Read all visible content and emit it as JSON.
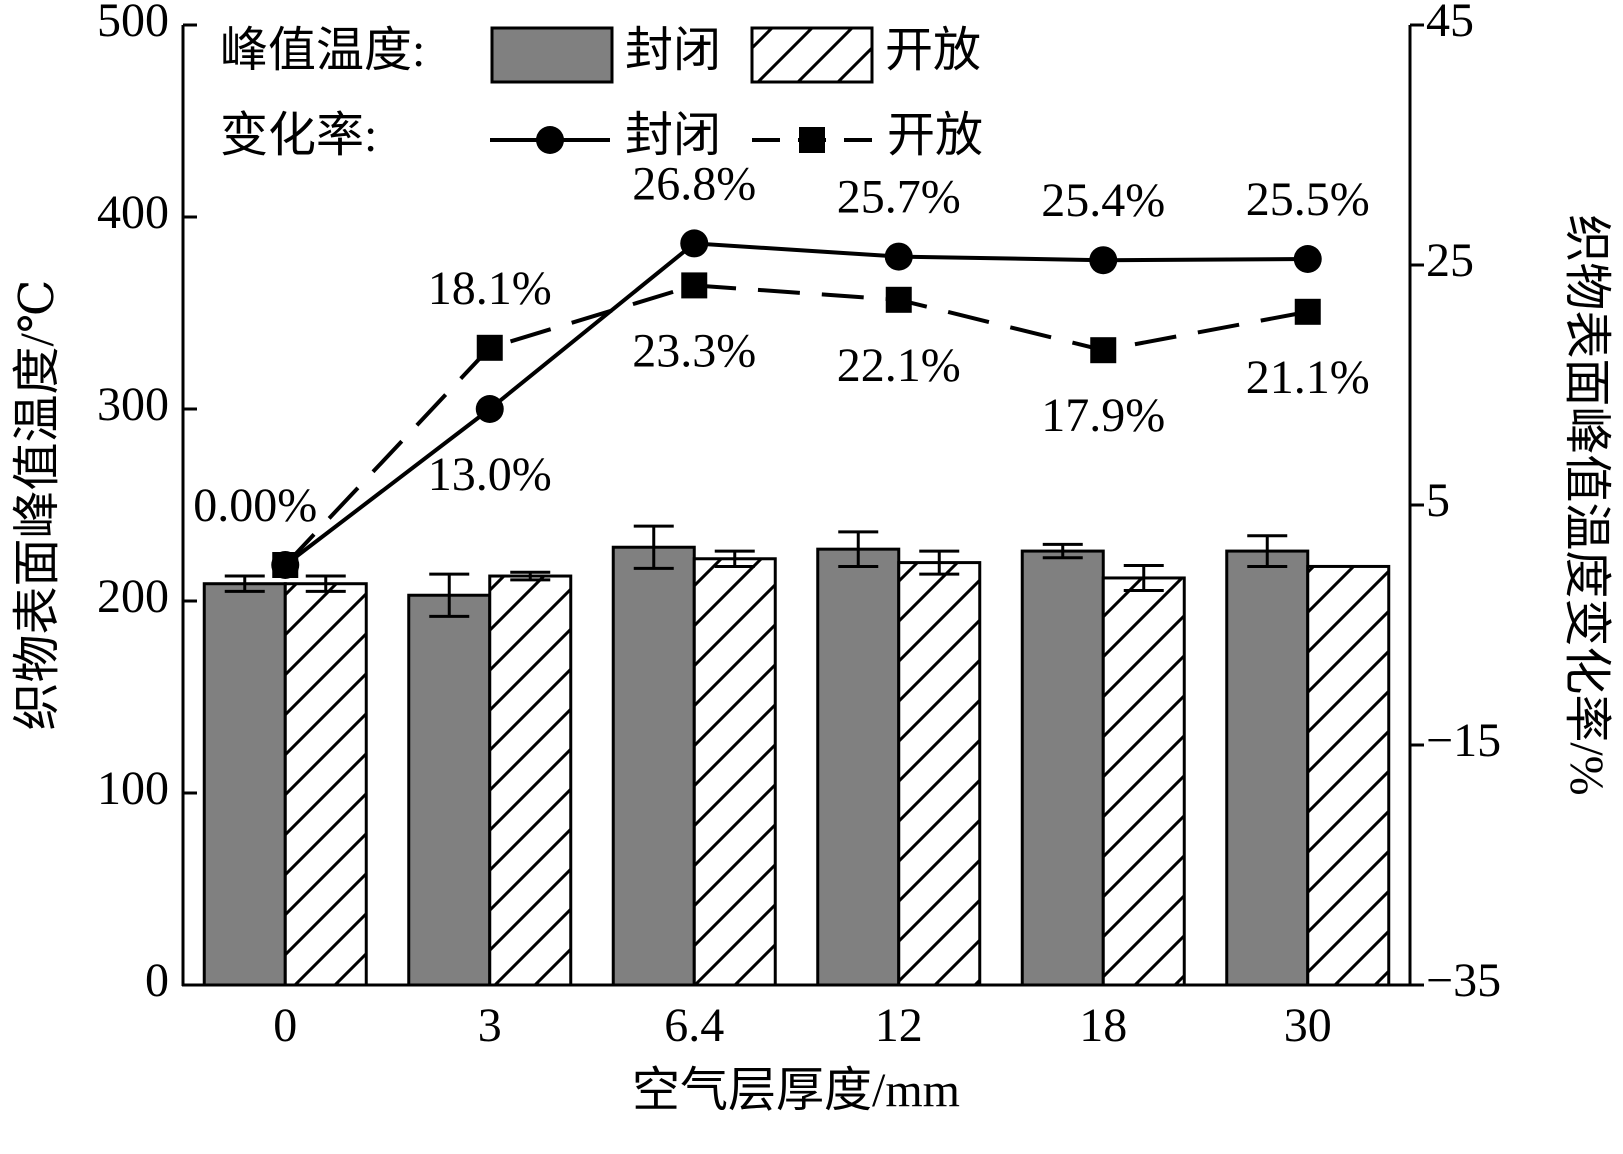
{
  "chart_data": {
    "type": "bar",
    "x_label": "空气层厚度/mm",
    "y_label": "织物表面峰值温度/℃",
    "y2_label": "织物表面峰值温度变化率/%",
    "categories": [
      "0",
      "3",
      "6.4",
      "12",
      "18",
      "30"
    ],
    "ylim": [
      0,
      500
    ],
    "yticks": [
      0,
      100,
      200,
      300,
      400,
      500
    ],
    "y2lim": [
      -35,
      45
    ],
    "y2ticks": [
      {
        "value": -35,
        "label": "−35"
      },
      {
        "value": -15,
        "label": "−15"
      },
      5,
      25,
      45
    ],
    "legend_groups": {
      "bar": "峰值温度:",
      "line": "变化率:"
    },
    "series": [
      {
        "name": "封闭",
        "type": "bar",
        "color": "#808080",
        "fill": "solid",
        "values": [
          209,
          203,
          228,
          227,
          226,
          226
        ],
        "errors": [
          4,
          11,
          11,
          9,
          3.5,
          8
        ]
      },
      {
        "name": "开放",
        "type": "bar",
        "color": "#ffffff",
        "fill": "hatch",
        "values": [
          209,
          213,
          222,
          220,
          212,
          218
        ],
        "errors": [
          4,
          2,
          4,
          6,
          6.5,
          null
        ]
      },
      {
        "name": "封闭",
        "type": "line",
        "axis": "y2",
        "color": "#000000",
        "marker": "circle",
        "line_style": "solid",
        "values": [
          0,
          13.0,
          26.8,
          25.7,
          25.4,
          25.5
        ],
        "value_labels": [
          "0.00%",
          "13.0%",
          "26.8%",
          "25.7%",
          "25.4%",
          "25.5%"
        ]
      },
      {
        "name": "开放",
        "type": "line",
        "axis": "y2",
        "color": "#000000",
        "marker": "square",
        "line_style": "dashed",
        "values": [
          0,
          18.1,
          23.3,
          22.1,
          17.9,
          21.1
        ],
        "value_labels": [
          null,
          "18.1%",
          "23.3%",
          "22.1%",
          "17.9%",
          "21.1%"
        ]
      }
    ]
  }
}
